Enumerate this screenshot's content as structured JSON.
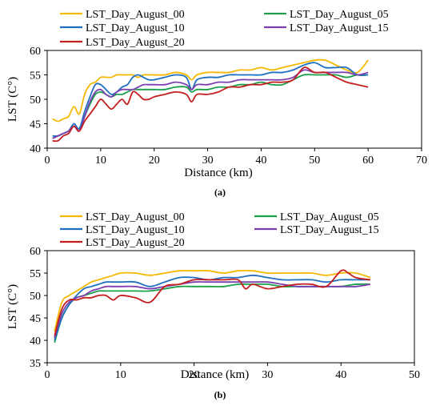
{
  "chart_data": [
    {
      "type": "line",
      "panel_label": "(a)",
      "xlabel": "Distance (km)",
      "ylabel": "LST (C°)",
      "xlim": [
        0,
        70
      ],
      "ylim": [
        40,
        60
      ],
      "x_ticks": [
        0,
        10,
        20,
        30,
        40,
        50,
        60,
        70
      ],
      "y_ticks": [
        40,
        45,
        50,
        55,
        60
      ],
      "grid": false,
      "legend_position": "top",
      "series": [
        {
          "name": "LST_Day_August_00",
          "color": "#f5b800",
          "x": [
            1,
            2,
            3,
            4,
            5,
            6,
            7,
            8,
            9,
            10,
            11,
            12,
            13,
            14,
            15,
            16,
            17,
            18,
            19,
            20,
            22,
            24,
            26,
            27,
            28,
            30,
            32,
            34,
            36,
            38,
            40,
            42,
            44,
            46,
            48,
            50,
            52,
            54,
            56,
            58,
            60
          ],
          "y": [
            46,
            45.5,
            46,
            46.5,
            48.5,
            47,
            51,
            53,
            53.5,
            54.5,
            54.5,
            54.5,
            55,
            55,
            55,
            55,
            54.5,
            55,
            55,
            55,
            55,
            55.5,
            55,
            54,
            55,
            55.5,
            55.5,
            55.5,
            56,
            56,
            56.5,
            56,
            56.5,
            57,
            57.5,
            58,
            58,
            57,
            56,
            55.5,
            58
          ]
        },
        {
          "name": "LST_Day_August_05",
          "color": "#1aa04a",
          "x": [
            1,
            2,
            3,
            4,
            5,
            6,
            7,
            8,
            9,
            10,
            11,
            12,
            13,
            14,
            15,
            16,
            17,
            18,
            19,
            20,
            22,
            24,
            26,
            27,
            28,
            30,
            32,
            34,
            36,
            38,
            40,
            42,
            44,
            46,
            48,
            50,
            52,
            54,
            56,
            58,
            60
          ],
          "y": [
            42,
            42.5,
            43,
            43.5,
            44.5,
            44,
            46.5,
            49,
            51,
            51.5,
            51,
            50.5,
            51,
            51,
            51.5,
            52,
            52,
            52,
            52,
            52,
            52,
            52.5,
            52.5,
            51.5,
            52,
            52,
            52.5,
            52.5,
            53,
            53,
            53.5,
            53,
            53,
            54,
            55,
            55,
            55,
            55,
            54.5,
            55,
            55
          ]
        },
        {
          "name": "LST_Day_August_10",
          "color": "#1f6fc0",
          "x": [
            1,
            2,
            3,
            4,
            5,
            6,
            7,
            8,
            9,
            10,
            11,
            12,
            13,
            14,
            15,
            16,
            17,
            18,
            19,
            20,
            22,
            24,
            26,
            27,
            28,
            30,
            32,
            34,
            36,
            38,
            40,
            42,
            44,
            46,
            48,
            50,
            52,
            54,
            56,
            58,
            60
          ],
          "y": [
            42.5,
            42.5,
            43,
            43.5,
            45,
            44,
            47.5,
            50.5,
            53,
            53,
            52,
            51,
            51.5,
            52.5,
            53,
            54.5,
            55,
            54.5,
            54,
            54,
            54.5,
            55,
            54.5,
            52,
            54,
            54.5,
            54.5,
            55,
            55,
            55,
            55,
            55.5,
            55.5,
            56,
            57,
            57.5,
            56.5,
            56.5,
            56.5,
            55,
            55
          ]
        },
        {
          "name": "LST_Day_August_15",
          "color": "#7b3fb0",
          "x": [
            1,
            2,
            3,
            4,
            5,
            6,
            7,
            8,
            9,
            10,
            11,
            12,
            13,
            14,
            15,
            16,
            17,
            18,
            19,
            20,
            22,
            24,
            26,
            27,
            28,
            30,
            32,
            34,
            36,
            38,
            40,
            42,
            44,
            46,
            48,
            50,
            52,
            54,
            56,
            58,
            60
          ],
          "y": [
            42,
            42.5,
            43,
            43.5,
            44.5,
            43.5,
            46.5,
            49.5,
            51.5,
            52,
            51,
            50.5,
            51.5,
            52,
            52,
            52,
            52.5,
            53,
            53,
            53,
            53,
            53.5,
            53,
            52,
            53,
            53,
            53.5,
            53.5,
            54,
            54,
            54,
            54,
            54,
            54.5,
            56,
            55.5,
            55.5,
            55.5,
            55.5,
            55,
            55.5
          ]
        },
        {
          "name": "LST_Day_August_20",
          "color": "#c41e1e",
          "x": [
            1,
            2,
            3,
            4,
            5,
            6,
            7,
            8,
            9,
            10,
            11,
            12,
            13,
            14,
            15,
            16,
            17,
            18,
            19,
            20,
            22,
            24,
            26,
            27,
            28,
            30,
            32,
            34,
            36,
            38,
            40,
            42,
            44,
            46,
            48,
            50,
            52,
            54,
            56,
            58,
            60
          ],
          "y": [
            41.5,
            41.5,
            42.5,
            43,
            44.5,
            43.5,
            45.5,
            47,
            48.5,
            50,
            49,
            48,
            49,
            50,
            49,
            51.5,
            51,
            50,
            50,
            50.5,
            51,
            51.5,
            51,
            49.5,
            51,
            51,
            51.5,
            52.5,
            52.5,
            53,
            53,
            53.5,
            53.5,
            54,
            56.5,
            55.5,
            55.5,
            54.5,
            53.5,
            53,
            52.5
          ]
        }
      ]
    },
    {
      "type": "line",
      "panel_label": "(b)",
      "xlabel": "Distance (km)",
      "ylabel": "LST (C°)",
      "xlim": [
        0,
        50
      ],
      "ylim": [
        35,
        60
      ],
      "x_ticks": [
        0,
        10,
        20,
        30,
        40,
        50
      ],
      "y_ticks": [
        35,
        40,
        45,
        50,
        55,
        60
      ],
      "grid": false,
      "legend_position": "top",
      "series": [
        {
          "name": "LST_Day_August_00",
          "color": "#f5b800",
          "x": [
            1,
            2,
            3,
            4,
            5,
            6,
            7,
            8,
            9,
            10,
            12,
            14,
            16,
            18,
            20,
            22,
            24,
            26,
            28,
            30,
            32,
            34,
            36,
            38,
            40,
            42,
            44
          ],
          "y": [
            42,
            48.5,
            50,
            51,
            52,
            53,
            53.5,
            54,
            54.5,
            55,
            55,
            54.5,
            55,
            55.5,
            55.5,
            55.5,
            55,
            55.5,
            55.5,
            55,
            55,
            55,
            55,
            54.5,
            55,
            55,
            54
          ]
        },
        {
          "name": "LST_Day_August_05",
          "color": "#1aa04a",
          "x": [
            1,
            2,
            3,
            4,
            5,
            6,
            7,
            8,
            9,
            10,
            12,
            14,
            16,
            18,
            20,
            22,
            24,
            26,
            28,
            30,
            32,
            34,
            36,
            38,
            40,
            42,
            44
          ],
          "y": [
            39.5,
            45,
            48,
            49.5,
            50,
            50.5,
            51,
            51,
            51,
            51,
            51,
            51,
            51.5,
            52,
            52,
            52,
            52,
            52.5,
            52.5,
            52.5,
            52,
            52,
            52,
            52,
            52,
            52.5,
            52.5
          ]
        },
        {
          "name": "LST_Day_August_10",
          "color": "#1f6fc0",
          "x": [
            1,
            2,
            3,
            4,
            5,
            6,
            7,
            8,
            9,
            10,
            12,
            14,
            16,
            18,
            20,
            22,
            24,
            26,
            28,
            30,
            32,
            34,
            36,
            38,
            40,
            42,
            44
          ],
          "y": [
            40,
            45,
            48,
            50,
            51.5,
            52,
            52.5,
            53,
            53,
            53,
            53,
            52,
            53,
            54,
            54,
            53.5,
            54,
            54,
            54.5,
            54,
            53.5,
            53.5,
            53.5,
            53,
            53.5,
            53.5,
            53.5
          ]
        },
        {
          "name": "LST_Day_August_15",
          "color": "#7b3fb0",
          "x": [
            1,
            2,
            3,
            4,
            5,
            6,
            7,
            8,
            9,
            10,
            12,
            14,
            16,
            18,
            20,
            22,
            24,
            26,
            28,
            30,
            32,
            34,
            36,
            38,
            40,
            42,
            44
          ],
          "y": [
            40.5,
            46,
            48.5,
            49.5,
            50,
            51,
            51.5,
            52,
            52,
            52,
            52,
            51.5,
            52,
            52.5,
            53,
            53,
            53,
            53,
            53,
            53,
            52.5,
            52,
            52,
            52,
            52,
            52,
            52.5
          ]
        },
        {
          "name": "LST_Day_August_20",
          "color": "#c41e1e",
          "x": [
            1,
            2,
            3,
            4,
            5,
            6,
            7,
            8,
            9,
            10,
            12,
            14,
            16,
            18,
            20,
            22,
            24,
            26,
            27,
            28,
            30,
            32,
            34,
            36,
            38,
            40,
            41,
            42,
            44
          ],
          "y": [
            41,
            47,
            49,
            49,
            49.5,
            49.5,
            50,
            50,
            49,
            50,
            49.5,
            48.5,
            52,
            52.5,
            53.5,
            53.5,
            53.5,
            53.5,
            51.5,
            52.5,
            51.5,
            52,
            52.5,
            52.5,
            52,
            55.5,
            55,
            54,
            53.5
          ]
        }
      ]
    }
  ]
}
